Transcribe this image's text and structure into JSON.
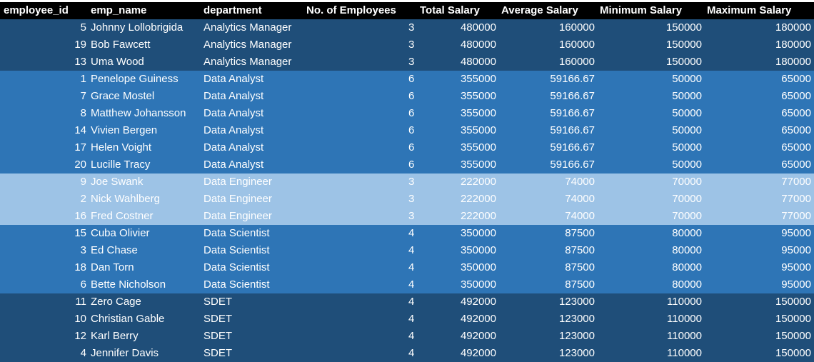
{
  "headers": {
    "employee_id": "employee_id",
    "emp_name": "emp_name",
    "department": "department",
    "num_employees": "No. of Employees",
    "total_salary": "Total Salary",
    "average_salary": "Average Salary",
    "minimum_salary": "Minimum Salary",
    "maximum_salary": "Maximum Salary"
  },
  "rows": [
    {
      "id": "5",
      "name": "Johnny Lollobrigida",
      "dept": "Analytics Manager",
      "count": "3",
      "total": "480000",
      "avg": "160000",
      "min": "150000",
      "max": "180000",
      "group": "g-dark"
    },
    {
      "id": "19",
      "name": "Bob Fawcett",
      "dept": "Analytics Manager",
      "count": "3",
      "total": "480000",
      "avg": "160000",
      "min": "150000",
      "max": "180000",
      "group": "g-dark"
    },
    {
      "id": "13",
      "name": "Uma Wood",
      "dept": "Analytics Manager",
      "count": "3",
      "total": "480000",
      "avg": "160000",
      "min": "150000",
      "max": "180000",
      "group": "g-dark"
    },
    {
      "id": "1",
      "name": "Penelope Guiness",
      "dept": "Data Analyst",
      "count": "6",
      "total": "355000",
      "avg": "59166.67",
      "min": "50000",
      "max": "65000",
      "group": "g-mid"
    },
    {
      "id": "7",
      "name": "Grace Mostel",
      "dept": "Data Analyst",
      "count": "6",
      "total": "355000",
      "avg": "59166.67",
      "min": "50000",
      "max": "65000",
      "group": "g-mid"
    },
    {
      "id": "8",
      "name": "Matthew Johansson",
      "dept": "Data Analyst",
      "count": "6",
      "total": "355000",
      "avg": "59166.67",
      "min": "50000",
      "max": "65000",
      "group": "g-mid"
    },
    {
      "id": "14",
      "name": "Vivien Bergen",
      "dept": "Data Analyst",
      "count": "6",
      "total": "355000",
      "avg": "59166.67",
      "min": "50000",
      "max": "65000",
      "group": "g-mid"
    },
    {
      "id": "17",
      "name": "Helen Voight",
      "dept": "Data Analyst",
      "count": "6",
      "total": "355000",
      "avg": "59166.67",
      "min": "50000",
      "max": "65000",
      "group": "g-mid"
    },
    {
      "id": "20",
      "name": "Lucille Tracy",
      "dept": "Data Analyst",
      "count": "6",
      "total": "355000",
      "avg": "59166.67",
      "min": "50000",
      "max": "65000",
      "group": "g-mid"
    },
    {
      "id": "9",
      "name": "Joe Swank",
      "dept": "Data Engineer",
      "count": "3",
      "total": "222000",
      "avg": "74000",
      "min": "70000",
      "max": "77000",
      "group": "g-light"
    },
    {
      "id": "2",
      "name": "Nick Wahlberg",
      "dept": "Data Engineer",
      "count": "3",
      "total": "222000",
      "avg": "74000",
      "min": "70000",
      "max": "77000",
      "group": "g-light"
    },
    {
      "id": "16",
      "name": "Fred Costner",
      "dept": "Data Engineer",
      "count": "3",
      "total": "222000",
      "avg": "74000",
      "min": "70000",
      "max": "77000",
      "group": "g-light"
    },
    {
      "id": "15",
      "name": "Cuba Olivier",
      "dept": "Data Scientist",
      "count": "4",
      "total": "350000",
      "avg": "87500",
      "min": "80000",
      "max": "95000",
      "group": "g-mid"
    },
    {
      "id": "3",
      "name": "Ed Chase",
      "dept": "Data Scientist",
      "count": "4",
      "total": "350000",
      "avg": "87500",
      "min": "80000",
      "max": "95000",
      "group": "g-mid"
    },
    {
      "id": "18",
      "name": "Dan Torn",
      "dept": "Data Scientist",
      "count": "4",
      "total": "350000",
      "avg": "87500",
      "min": "80000",
      "max": "95000",
      "group": "g-mid"
    },
    {
      "id": "6",
      "name": "Bette Nicholson",
      "dept": "Data Scientist",
      "count": "4",
      "total": "350000",
      "avg": "87500",
      "min": "80000",
      "max": "95000",
      "group": "g-mid"
    },
    {
      "id": "11",
      "name": "Zero Cage",
      "dept": "SDET",
      "count": "4",
      "total": "492000",
      "avg": "123000",
      "min": "110000",
      "max": "150000",
      "group": "g-navy"
    },
    {
      "id": "10",
      "name": "Christian Gable",
      "dept": "SDET",
      "count": "4",
      "total": "492000",
      "avg": "123000",
      "min": "110000",
      "max": "150000",
      "group": "g-navy"
    },
    {
      "id": "12",
      "name": "Karl Berry",
      "dept": "SDET",
      "count": "4",
      "total": "492000",
      "avg": "123000",
      "min": "110000",
      "max": "150000",
      "group": "g-navy"
    },
    {
      "id": "4",
      "name": "Jennifer Davis",
      "dept": "SDET",
      "count": "4",
      "total": "492000",
      "avg": "123000",
      "min": "110000",
      "max": "150000",
      "group": "g-navy"
    }
  ],
  "colors": {
    "header_bg": "#000000",
    "analytics_manager_bg": "#1f4e79",
    "data_analyst_bg": "#2e75b6",
    "data_engineer_bg": "#9dc3e6",
    "data_scientist_bg": "#2e75b6",
    "sdet_bg": "#1f4e79",
    "text": "#ffffff"
  }
}
